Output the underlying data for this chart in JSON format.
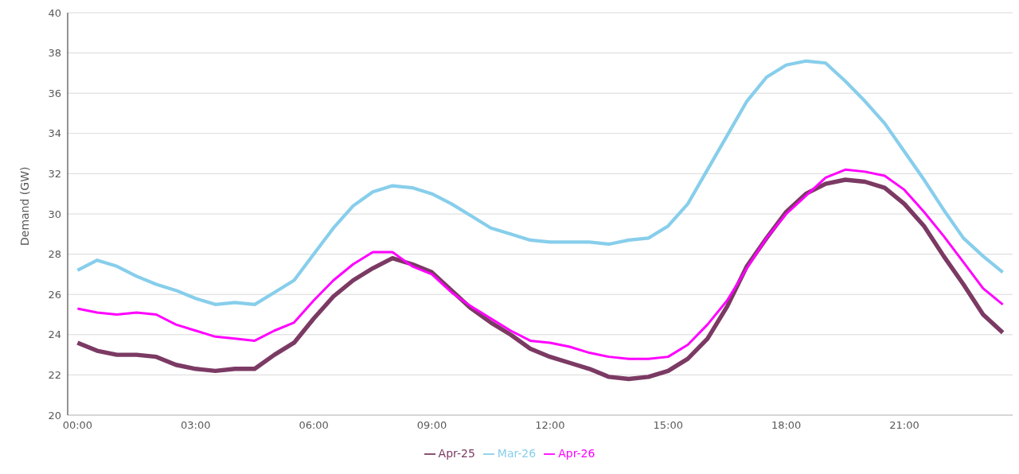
{
  "chart_data": {
    "type": "line",
    "ylabel": "Demand (GW)",
    "x": [
      0,
      0.5,
      1,
      1.5,
      2,
      2.5,
      3,
      3.5,
      4,
      4.5,
      5,
      5.5,
      6,
      6.5,
      7,
      7.5,
      8,
      8.5,
      9,
      9.5,
      10,
      10.5,
      11,
      11.5,
      12,
      12.5,
      13,
      13.5,
      14,
      14.5,
      15,
      15.5,
      16,
      16.5,
      17,
      17.5,
      18,
      18.5,
      19,
      19.5,
      20,
      20.5,
      21,
      21.5,
      22,
      22.5,
      23,
      23.5
    ],
    "xlim": [
      -0.25,
      23.75
    ],
    "xticks": [
      {
        "value": 0,
        "label": "00:00"
      },
      {
        "value": 3,
        "label": "03:00"
      },
      {
        "value": 6,
        "label": "06:00"
      },
      {
        "value": 9,
        "label": "09:00"
      },
      {
        "value": 12,
        "label": "12:00"
      },
      {
        "value": 15,
        "label": "15:00"
      },
      {
        "value": 18,
        "label": "18:00"
      },
      {
        "value": 21,
        "label": "21:00"
      }
    ],
    "ylim": [
      20,
      40
    ],
    "yticks": [
      20,
      22,
      24,
      26,
      28,
      30,
      32,
      34,
      36,
      38,
      40
    ],
    "grid": "y",
    "legend": "bottom",
    "marker": "none",
    "line_style": "solid",
    "series": [
      {
        "name": "Apr-25",
        "color": "#7b3a63",
        "values": [
          23.6,
          23.2,
          23.0,
          23.0,
          22.9,
          22.5,
          22.3,
          22.2,
          22.3,
          22.3,
          23.0,
          23.6,
          24.8,
          25.9,
          26.7,
          27.3,
          27.8,
          27.5,
          27.1,
          26.2,
          25.3,
          24.6,
          24.0,
          23.3,
          22.9,
          22.6,
          22.3,
          21.9,
          21.8,
          21.9,
          22.2,
          22.8,
          23.8,
          25.4,
          27.4,
          28.8,
          30.1,
          31.0,
          31.5,
          31.7,
          31.6,
          31.3,
          30.5,
          29.4,
          27.9,
          26.5,
          25.0,
          24.1
        ]
      },
      {
        "name": "Mar-26",
        "color": "#87ceeb",
        "values": [
          27.2,
          27.7,
          27.4,
          26.9,
          26.5,
          26.2,
          25.8,
          25.5,
          25.6,
          25.5,
          26.1,
          26.7,
          28.0,
          29.3,
          30.4,
          31.1,
          31.4,
          31.3,
          31.0,
          30.5,
          29.9,
          29.3,
          29.0,
          28.7,
          28.6,
          28.6,
          28.6,
          28.5,
          28.7,
          28.8,
          29.4,
          30.5,
          32.2,
          33.9,
          35.6,
          36.8,
          37.4,
          37.6,
          37.5,
          36.6,
          35.6,
          34.5,
          33.1,
          31.7,
          30.2,
          28.8,
          27.9,
          27.1
        ]
      },
      {
        "name": "Apr-26",
        "color": "#ff00ff",
        "values": [
          25.3,
          25.1,
          25.0,
          25.1,
          25.0,
          24.5,
          24.2,
          23.9,
          23.8,
          23.7,
          24.2,
          24.6,
          25.7,
          26.7,
          27.5,
          28.1,
          28.1,
          27.4,
          27.0,
          26.1,
          25.4,
          24.8,
          24.2,
          23.7,
          23.6,
          23.4,
          23.1,
          22.9,
          22.8,
          22.8,
          22.9,
          23.5,
          24.5,
          25.7,
          27.3,
          28.8,
          30.0,
          30.9,
          31.8,
          32.2,
          32.1,
          31.9,
          31.2,
          30.1,
          28.9,
          27.6,
          26.3,
          25.5
        ]
      }
    ]
  }
}
